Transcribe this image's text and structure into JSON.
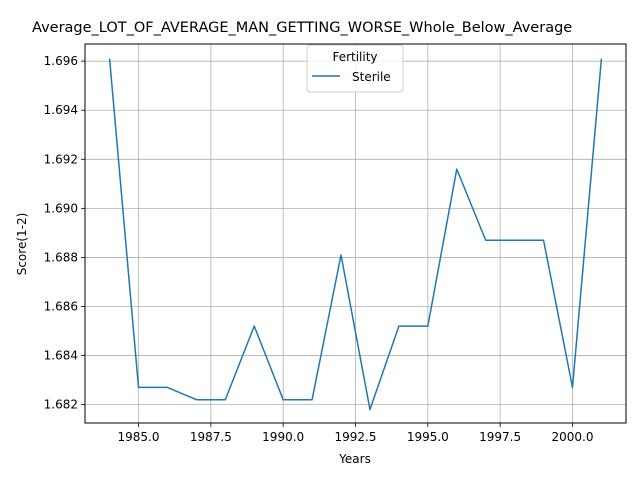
{
  "chart_data": {
    "type": "line",
    "title": "Average_LOT_OF_AVERAGE_MAN_GETTING_WORSE_Whole_Below_Average",
    "xlabel": "Years",
    "ylabel": "Score(1-2)",
    "xlim": [
      1983.15,
      2001.85
    ],
    "ylim": [
      1681.25,
      1696.7
    ],
    "y_scale_divisor": 1000,
    "x_ticks": [
      1985.0,
      1987.5,
      1990.0,
      1992.5,
      1995.0,
      1997.5,
      2000.0
    ],
    "x_tick_labels": [
      "1985.0",
      "1987.5",
      "1990.0",
      "1992.5",
      "1995.0",
      "1997.5",
      "2000.0"
    ],
    "y_ticks": [
      1.682,
      1.684,
      1.686,
      1.688,
      1.69,
      1.692,
      1.694,
      1.696
    ],
    "y_tick_labels": [
      "1.682",
      "1.684",
      "1.686",
      "1.688",
      "1.690",
      "1.692",
      "1.694",
      "1.696"
    ],
    "grid": true,
    "legend": {
      "title": "Fertility",
      "placement": "upper center"
    },
    "series": [
      {
        "name": "Sterile",
        "color": "#1f77b4",
        "x": [
          1984,
          1985,
          1986,
          1987,
          1988,
          1989,
          1990,
          1991,
          1992,
          1993,
          1994,
          1995,
          1996,
          1997,
          1998,
          1999,
          2000,
          2001
        ],
        "y": [
          1.6961,
          1.6827,
          1.6827,
          1.6822,
          1.6822,
          1.6852,
          1.6822,
          1.6822,
          1.6881,
          1.6818,
          1.6852,
          1.6852,
          1.6916,
          1.6887,
          1.6887,
          1.6887,
          1.6827,
          1.6961
        ]
      }
    ]
  }
}
